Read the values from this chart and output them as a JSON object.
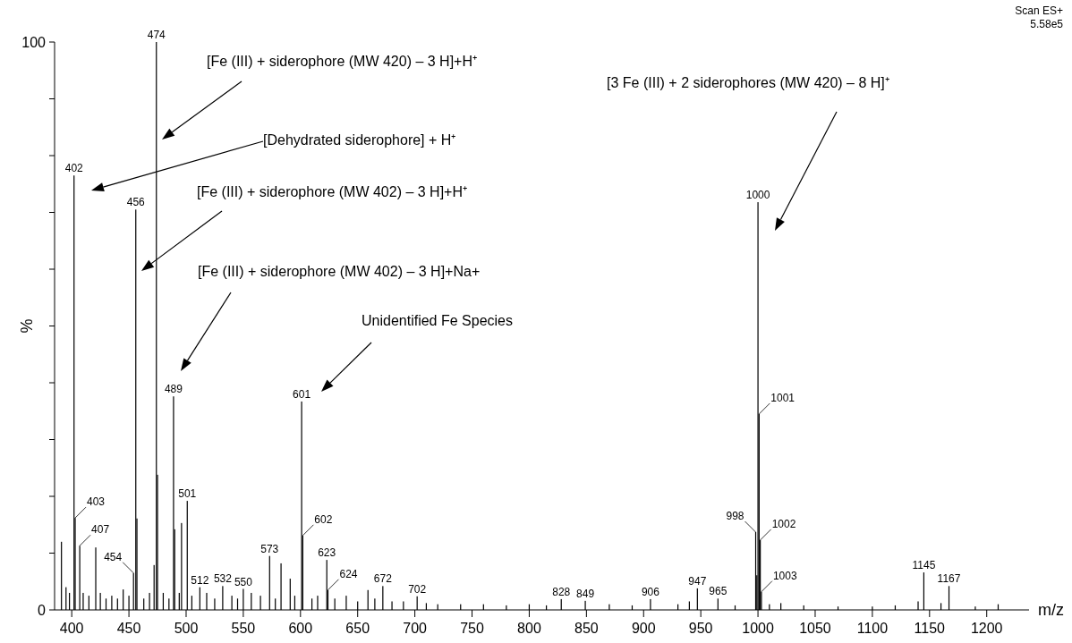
{
  "chart_data": {
    "type": "bar",
    "xlabel": "m/z",
    "ylabel": "%",
    "xlim": [
      385,
      1237
    ],
    "ylim": [
      0,
      100
    ],
    "xticks": [
      400,
      450,
      500,
      550,
      600,
      650,
      700,
      750,
      800,
      850,
      900,
      950,
      1000,
      1050,
      1100,
      1150,
      1200
    ],
    "yticks": [
      0,
      {
        "value": 10,
        "label": null
      },
      {
        "value": 20,
        "label": null
      },
      {
        "value": 30,
        "label": null
      },
      {
        "value": 40,
        "label": null
      },
      {
        "value": 50,
        "label": null
      },
      {
        "value": 60,
        "label": null
      },
      {
        "value": 70,
        "label": null
      },
      {
        "value": 80,
        "label": null
      },
      {
        "value": 90,
        "label": null
      },
      100
    ],
    "series": [
      {
        "color": "#000000",
        "x": [
          391,
          395,
          398,
          402,
          403,
          407,
          410,
          415,
          421,
          425,
          430,
          435,
          440,
          445,
          450,
          454,
          456,
          457,
          463,
          468,
          472,
          474,
          475,
          480,
          485,
          489,
          490,
          494,
          496,
          501,
          505,
          512,
          518,
          525,
          532,
          540,
          545,
          550,
          557,
          565,
          573,
          578,
          583,
          591,
          595,
          601,
          602,
          610,
          615,
          623,
          624,
          630,
          640,
          650,
          659,
          665,
          672,
          680,
          690,
          702,
          710,
          720,
          740,
          760,
          780,
          800,
          815,
          828,
          849,
          870,
          890,
          906,
          930,
          940,
          947,
          965,
          980,
          998,
          999,
          1000,
          1001,
          1002,
          1003,
          1010,
          1020,
          1040,
          1070,
          1100,
          1120,
          1140,
          1145,
          1160,
          1167,
          1190,
          1210
        ],
        "values": [
          12,
          4,
          3,
          76.5,
          16.2,
          11.3,
          3,
          2.5,
          11,
          3,
          2,
          2.5,
          2,
          3.6,
          2.5,
          6.5,
          70.5,
          16.1,
          2,
          3,
          7.9,
          100,
          23.8,
          3,
          2,
          37.6,
          14.2,
          3,
          15.3,
          19.2,
          2.5,
          4,
          3,
          2,
          4.2,
          2.5,
          2,
          3.7,
          3,
          2.5,
          9.5,
          2,
          8.2,
          5.5,
          2.5,
          36.7,
          13.1,
          2,
          2.5,
          8.8,
          3.5,
          2,
          2.5,
          1.5,
          3.5,
          2,
          4.2,
          1.5,
          1.5,
          2.4,
          1.2,
          1,
          1,
          1,
          0.8,
          1,
          0.8,
          1.9,
          1.6,
          1,
          0.8,
          1.9,
          1,
          1.5,
          3.8,
          2,
          0.8,
          13.7,
          6.1,
          71.8,
          34.5,
          12.3,
          3.2,
          1,
          1.2,
          0.8,
          0.6,
          0.6,
          0.8,
          1.5,
          6.6,
          1.2,
          4.2,
          0.6,
          1
        ]
      }
    ],
    "annotations": [
      "[Fe (III) + siderophore (MW 420) – 3 H]+H⁺",
      "[Dehydrated siderophore] + H⁺",
      "[Fe (III) + siderophore (MW 402) – 3 H]+H⁺",
      "[Fe (III) + siderophore (MW 402) – 3 H]+Na+",
      "Unidentified Fe Species",
      "[3 Fe (III) + 2 siderophores (MW 420) – 8 H]⁺",
      {
        "text": "402",
        "x": 402,
        "y": 76.5
      },
      {
        "text": "403",
        "x": 403,
        "y": 16.2
      },
      {
        "text": "407",
        "x": 407,
        "y": 11.3
      },
      {
        "text": "454",
        "x": 454,
        "y": 6.5
      },
      {
        "text": "456",
        "x": 456,
        "y": 70.5
      },
      {
        "text": "474",
        "x": 474,
        "y": 100
      },
      {
        "text": "489",
        "x": 489,
        "y": 37.6
      },
      {
        "text": "501",
        "x": 501,
        "y": 19.2
      },
      {
        "text": "512",
        "x": 512,
        "y": 4
      },
      {
        "text": "532",
        "x": 532,
        "y": 4.2
      },
      {
        "text": "550",
        "x": 550,
        "y": 3.7
      },
      {
        "text": "573",
        "x": 573,
        "y": 9.5
      },
      {
        "text": "601",
        "x": 601,
        "y": 36.7
      },
      {
        "text": "602",
        "x": 602,
        "y": 13.1
      },
      {
        "text": "623",
        "x": 623,
        "y": 8.8
      },
      {
        "text": "624",
        "x": 624,
        "y": 3.5
      },
      {
        "text": "672",
        "x": 672,
        "y": 4.2
      },
      {
        "text": "702",
        "x": 702,
        "y": 2.4
      },
      {
        "text": "828",
        "x": 828,
        "y": 1.9
      },
      {
        "text": "849",
        "x": 849,
        "y": 1.6
      },
      {
        "text": "906",
        "x": 906,
        "y": 1.9
      },
      {
        "text": "947",
        "x": 947,
        "y": 3.8
      },
      {
        "text": "965",
        "x": 965,
        "y": 2
      },
      {
        "text": "998",
        "x": 998,
        "y": 13.7
      },
      {
        "text": "1000",
        "x": 1000,
        "y": 71.8
      },
      {
        "text": "1001",
        "x": 1001,
        "y": 34.5
      },
      {
        "text": "1002",
        "x": 1002,
        "y": 12.3
      },
      {
        "text": "1003",
        "x": 1003,
        "y": 3.2
      },
      {
        "text": "1145",
        "x": 1145,
        "y": 6.6
      },
      {
        "text": "1167",
        "x": 1167,
        "y": 4.2
      },
      "Scan ES+",
      "5.58e5"
    ]
  }
}
